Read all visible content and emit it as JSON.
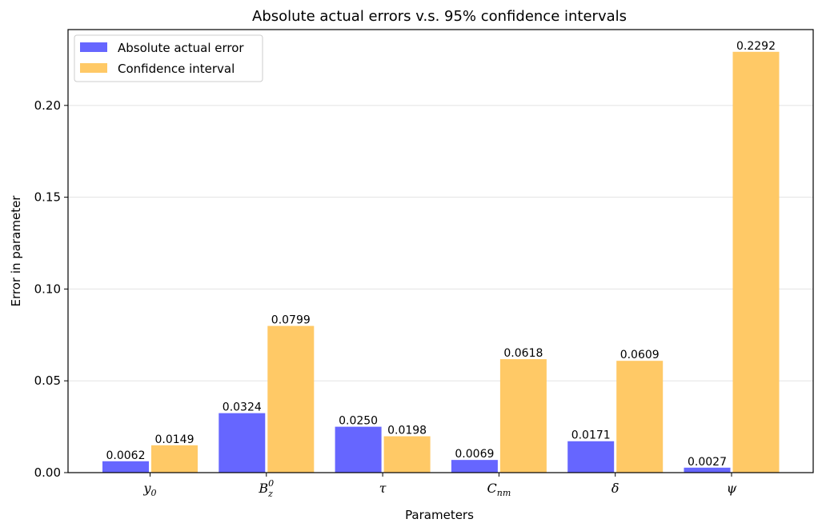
{
  "chart_data": {
    "type": "bar",
    "title": "Absolute actual errors v.s. 95% confidence intervals",
    "xlabel": "Parameters",
    "ylabel": "Error in parameter",
    "ylim": [
      0,
      0.2413
    ],
    "yticks": [
      0.0,
      0.05,
      0.1,
      0.15,
      0.2
    ],
    "ytick_labels": [
      "0.00",
      "0.05",
      "0.10",
      "0.15",
      "0.20"
    ],
    "grid": "horizontal",
    "legend_position": "top-left",
    "categories": [
      {
        "base": "y",
        "sub": "0",
        "sup": ""
      },
      {
        "base": "B",
        "sub": "z",
        "sup": "0"
      },
      {
        "base": "τ",
        "sub": "",
        "sup": ""
      },
      {
        "base": "C",
        "sub": "nm",
        "sup": ""
      },
      {
        "base": "δ",
        "sub": "",
        "sup": ""
      },
      {
        "base": "ψ",
        "sub": "",
        "sup": ""
      }
    ],
    "series": [
      {
        "name": "Absolute actual error",
        "color": "#6666ff",
        "values": [
          0.0062,
          0.0324,
          0.025,
          0.0069,
          0.0171,
          0.0027
        ],
        "labels": [
          "0.0062",
          "0.0324",
          "0.0250",
          "0.0069",
          "0.0171",
          "0.0027"
        ]
      },
      {
        "name": "Confidence interval",
        "color": "#ffc966",
        "values": [
          0.0149,
          0.0799,
          0.0198,
          0.0618,
          0.0609,
          0.2292
        ],
        "labels": [
          "0.0149",
          "0.0799",
          "0.0198",
          "0.0618",
          "0.0609",
          "0.2292"
        ]
      }
    ]
  }
}
